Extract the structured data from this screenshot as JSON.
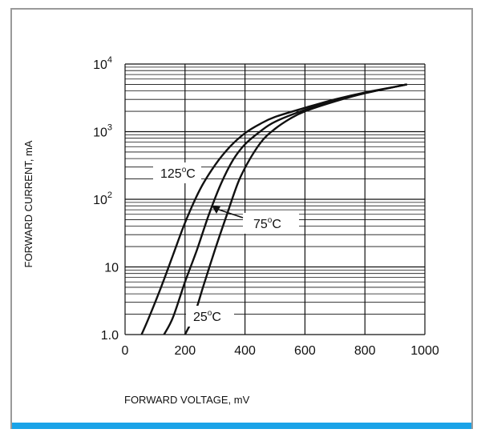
{
  "chart_data": {
    "type": "line",
    "title": "",
    "xlabel": "FORWARD VOLTAGE, mV",
    "ylabel": "FORWARD CURRENT, mA",
    "xlim": [
      0,
      1000
    ],
    "ylim": [
      1,
      10000
    ],
    "y_scale": "log",
    "grid": true,
    "x_ticks": [
      "0",
      "200",
      "400",
      "600",
      "800",
      "1000"
    ],
    "y_ticks": [
      {
        "base": "1.0",
        "exp": ""
      },
      {
        "base": "10",
        "exp": ""
      },
      {
        "base": "10",
        "exp": "2"
      },
      {
        "base": "10",
        "exp": "3"
      },
      {
        "base": "10",
        "exp": "4"
      }
    ],
    "series": [
      {
        "name": "125°C",
        "x": [
          55,
          80,
          120,
          160,
          200,
          250,
          300,
          350,
          400,
          450,
          500,
          600,
          700,
          800,
          900,
          940
        ],
        "y": [
          1.0,
          1.8,
          5,
          15,
          45,
          140,
          320,
          600,
          950,
          1300,
          1650,
          2250,
          3000,
          3800,
          4600,
          5000
        ]
      },
      {
        "name": "75°C",
        "x": [
          130,
          160,
          200,
          240,
          280,
          320,
          360,
          400,
          450,
          500,
          600,
          700,
          800,
          900,
          940
        ],
        "y": [
          1.0,
          1.8,
          6,
          18,
          60,
          170,
          380,
          650,
          1000,
          1400,
          2100,
          2900,
          3700,
          4600,
          5000
        ]
      },
      {
        "name": "25°C",
        "x": [
          200,
          230,
          260,
          300,
          340,
          380,
          420,
          460,
          500,
          550,
          600,
          700,
          800,
          900,
          940
        ],
        "y": [
          1.0,
          1.9,
          5,
          18,
          60,
          190,
          420,
          760,
          1100,
          1550,
          2000,
          2800,
          3700,
          4600,
          5000
        ]
      }
    ],
    "annotations": [
      {
        "text": "125",
        "unit": "C"
      },
      {
        "text": "75",
        "unit": "C"
      },
      {
        "text": "25",
        "unit": "C"
      }
    ]
  },
  "colors": {
    "frame": "#9a9a9a",
    "accent": "#1aa3e8",
    "curve": "#111111",
    "grid": "#111111"
  }
}
